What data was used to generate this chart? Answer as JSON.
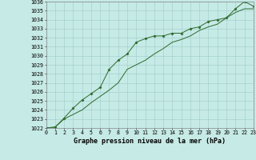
{
  "title": "Graphe pression niveau de la mer (hPa)",
  "line1_x": [
    0,
    1,
    2,
    3,
    4,
    5,
    6,
    7,
    8,
    9,
    10,
    11,
    12,
    13,
    14,
    15,
    16,
    17,
    18,
    19,
    20,
    21,
    22,
    23
  ],
  "line1_y": [
    1022.0,
    1022.1,
    1023.1,
    1024.2,
    1025.1,
    1025.8,
    1026.5,
    1028.5,
    1029.5,
    1030.2,
    1031.5,
    1031.9,
    1032.2,
    1032.2,
    1032.5,
    1032.5,
    1033.0,
    1033.2,
    1033.8,
    1034.0,
    1034.2,
    1035.2,
    1036.0,
    1035.5
  ],
  "line2_x": [
    0,
    1,
    2,
    3,
    4,
    5,
    6,
    7,
    8,
    9,
    10,
    11,
    12,
    13,
    14,
    15,
    16,
    17,
    18,
    19,
    20,
    21,
    22,
    23
  ],
  "line2_y": [
    1022.0,
    1022.1,
    1023.0,
    1023.5,
    1024.0,
    1024.8,
    1025.5,
    1026.2,
    1027.0,
    1028.5,
    1029.0,
    1029.5,
    1030.2,
    1030.8,
    1031.5,
    1031.8,
    1032.2,
    1032.8,
    1033.2,
    1033.5,
    1034.2,
    1034.8,
    1035.2,
    1035.2
  ],
  "ylim_min": 1022,
  "ylim_max": 1036,
  "xlim_min": 0,
  "xlim_max": 23,
  "line_color": "#2d6a2d",
  "marker_color": "#2d6a2d",
  "bg_color": "#c6eae6",
  "grid_color": "#9eccc8",
  "title_fontsize": 6.0,
  "tick_fontsize": 4.8
}
